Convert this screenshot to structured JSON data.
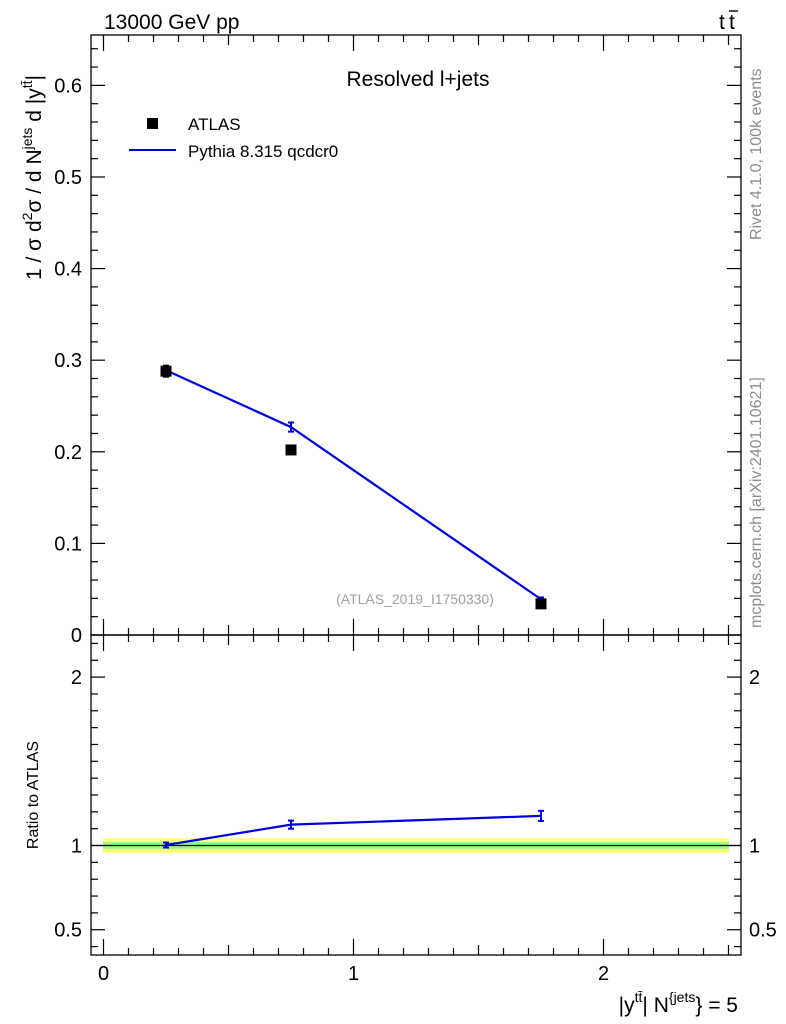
{
  "header": {
    "left": "13000 GeV pp",
    "right_base": "t",
    "right_bar": "t"
  },
  "side_text": {
    "upper": "Rivet 4.1.0,  100k events",
    "lower": "mcplots.cern.ch [arXiv:2401.10621]"
  },
  "chart_data": [
    {
      "type": "scatter",
      "panel": "main",
      "title": "Resolved l+jets",
      "watermark": "(ATLAS_2019_I1750330)",
      "ylabel": "1 / σ d²σ / d N^{jets} d |y^{tt̄}|",
      "ylabel_parts": {
        "a": "1 / σ d",
        "a_sup": "2",
        "b": "σ / d N",
        "b_sup": "jets",
        "c": " d |y",
        "c_sup": "tt̄",
        "d": "|"
      },
      "xlim": [
        -0.05,
        2.55
      ],
      "ylim": [
        0,
        0.655
      ],
      "yticks": [
        0,
        0.1,
        0.2,
        0.3,
        0.4,
        0.5,
        0.6
      ],
      "ytick_labels": [
        "0",
        "0.1",
        "0.2",
        "0.3",
        "0.4",
        "0.5",
        "0.6"
      ],
      "legend": [
        {
          "label": "ATLAS",
          "marker": "square",
          "color": "#000000"
        },
        {
          "label": "Pythia 8.315 qcdcr0",
          "marker": "line",
          "color": "#0000dd"
        }
      ],
      "series": [
        {
          "name": "ATLAS",
          "color": "#000000",
          "x": [
            0.25,
            0.75,
            1.75
          ],
          "y": [
            0.288,
            0.202,
            0.034
          ],
          "yerr": [
            0.006,
            0.003,
            0.002
          ]
        },
        {
          "name": "Pythia 8.315 qcdcr0",
          "color": "#0000dd",
          "x": [
            0.25,
            0.75,
            1.75
          ],
          "y": [
            0.289,
            0.227,
            0.039
          ],
          "yerr": [
            0.004,
            0.005,
            0.002
          ]
        }
      ]
    },
    {
      "type": "line",
      "panel": "ratio",
      "ylabel": "Ratio to ATLAS",
      "xlabel_parts": {
        "a": "|y",
        "a_sup": "tt̄",
        "b": "| N",
        "b_sup": "{jets",
        "c": "} = 5"
      },
      "xlim": [
        -0.05,
        2.55
      ],
      "ylim": [
        0.35,
        2.25
      ],
      "yticks": [
        0.5,
        1,
        2
      ],
      "ytick_labels": [
        "0.5",
        "1",
        "2"
      ],
      "xticks": [
        0,
        1,
        2
      ],
      "xtick_labels": [
        "0",
        "1",
        "2"
      ],
      "band_yellow": [
        0.955,
        1.045
      ],
      "band_green": [
        0.98,
        1.02
      ],
      "series": [
        {
          "name": "Pythia 8.315 qcdcr0",
          "color": "#0000dd",
          "x": [
            0.25,
            0.75,
            1.75
          ],
          "y": [
            1.003,
            1.124,
            1.176
          ],
          "yerr": [
            0.015,
            0.024,
            0.03
          ]
        }
      ]
    }
  ]
}
